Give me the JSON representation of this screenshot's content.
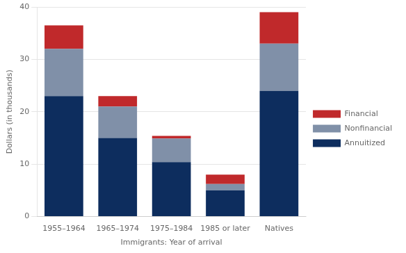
{
  "chart_data": {
    "type": "bar",
    "stacked": true,
    "categories": [
      "1955–1964",
      "1965–1974",
      "1975–1984",
      "1985 or later",
      "Natives"
    ],
    "series": [
      {
        "name": "Annuitized",
        "color": "#0d2d5e",
        "values": [
          23,
          15,
          10.4,
          5,
          24
        ]
      },
      {
        "name": "Nonfinancial",
        "color": "#8090a8",
        "values": [
          9,
          6,
          4.5,
          1.2,
          9
        ]
      },
      {
        "name": "Financial",
        "color": "#c0292b",
        "values": [
          4.5,
          2,
          0.5,
          1.8,
          6
        ]
      }
    ],
    "xlabel": "Immigrants: Year of arrival",
    "ylabel": "Dollars (in thousands)",
    "ylim": [
      0,
      40
    ],
    "yticks": [
      0,
      10,
      20,
      30,
      40
    ],
    "grid": true,
    "legend": "right"
  }
}
